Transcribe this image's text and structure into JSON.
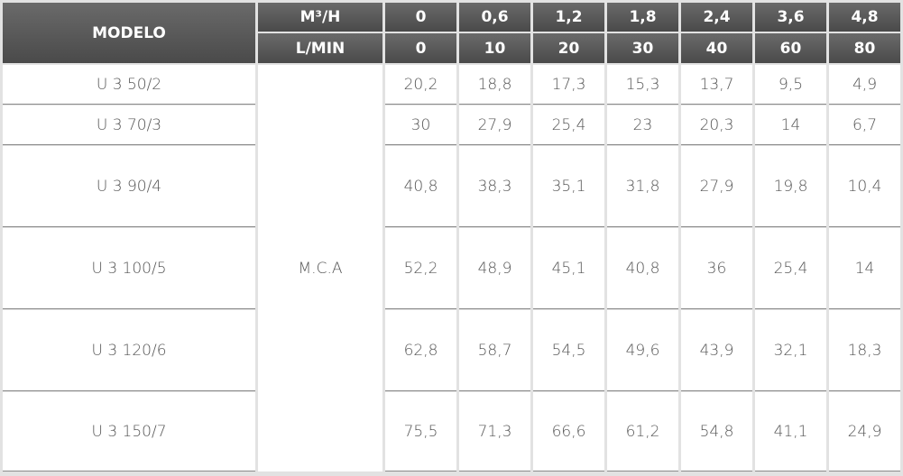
{
  "table": {
    "header": {
      "model": "MODELO",
      "units": [
        "M³/H",
        "L/MIN"
      ],
      "flow_m3h": [
        "0",
        "0,6",
        "1,2",
        "1,8",
        "2,4",
        "3,6",
        "4,8"
      ],
      "flow_lmin": [
        "0",
        "10",
        "20",
        "30",
        "40",
        "60",
        "80"
      ]
    },
    "unit_label": "M.C.A",
    "rows": [
      {
        "model": "U 3 50/2",
        "values": [
          "20,2",
          "18,8",
          "17,3",
          "15,3",
          "13,7",
          "9,5",
          "4,9"
        ]
      },
      {
        "model": "U 3 70/3",
        "values": [
          "30",
          "27,9",
          "25,4",
          "23",
          "20,3",
          "14",
          "6,7"
        ]
      },
      {
        "model": "U 3 90/4",
        "values": [
          "40,8",
          "38,3",
          "35,1",
          "31,8",
          "27,9",
          "19,8",
          "10,4"
        ]
      },
      {
        "model": "U 3 100/5",
        "values": [
          "52,2",
          "48,9",
          "45,1",
          "40,8",
          "36",
          "25,4",
          "14"
        ]
      },
      {
        "model": "U 3 120/6",
        "values": [
          "62,8",
          "58,7",
          "54,5",
          "49,6",
          "43,9",
          "32,1",
          "18,3"
        ]
      },
      {
        "model": "U 3 150/7",
        "values": [
          "75,5",
          "71,3",
          "66,6",
          "61,2",
          "54,8",
          "41,1",
          "24,9"
        ]
      }
    ]
  }
}
